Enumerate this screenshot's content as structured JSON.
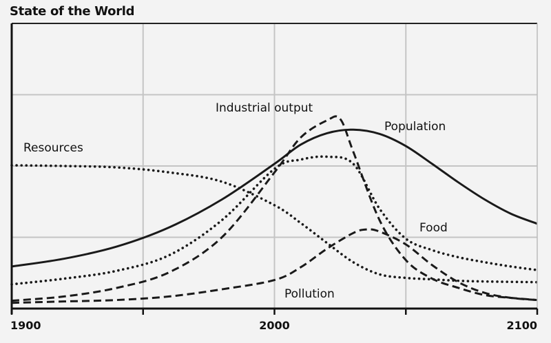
{
  "chart_data": {
    "type": "line",
    "title": "State of the World",
    "xlabel": "",
    "ylabel": "",
    "xlim": [
      1900,
      2100
    ],
    "ylim": [
      0,
      4
    ],
    "x_ticks": [
      "1900",
      "2000",
      "2100"
    ],
    "grid": true,
    "legend": "inline labels",
    "series": [
      {
        "name": "Population",
        "style": "solid",
        "x": [
          1900,
          1920,
          1940,
          1960,
          1980,
          2000,
          2010,
          2020,
          2030,
          2040,
          2050,
          2060,
          2070,
          2080,
          2090,
          2100
        ],
        "y": [
          0.59,
          0.7,
          0.87,
          1.14,
          1.53,
          2.03,
          2.3,
          2.46,
          2.51,
          2.45,
          2.28,
          2.03,
          1.77,
          1.53,
          1.33,
          1.19
        ]
      },
      {
        "name": "Industrial output",
        "style": "dashed",
        "x": [
          1900,
          1920,
          1940,
          1960,
          1980,
          2000,
          2010,
          2020,
          2025,
          2030,
          2040,
          2050,
          2060,
          2070,
          2080,
          2090,
          2100
        ],
        "y": [
          0.11,
          0.17,
          0.29,
          0.51,
          1.0,
          1.91,
          2.4,
          2.64,
          2.66,
          2.2,
          1.24,
          0.68,
          0.42,
          0.29,
          0.19,
          0.15,
          0.12
        ]
      },
      {
        "name": "Food",
        "style": "dotted",
        "x": [
          1900,
          1920,
          1940,
          1960,
          1980,
          2000,
          2010,
          2020,
          2030,
          2040,
          2050,
          2060,
          2070,
          2080,
          2090,
          2100
        ],
        "y": [
          0.34,
          0.42,
          0.53,
          0.75,
          1.24,
          1.96,
          2.09,
          2.13,
          2.03,
          1.4,
          0.98,
          0.82,
          0.72,
          0.65,
          0.59,
          0.54
        ]
      },
      {
        "name": "Resources",
        "style": "dotted",
        "x": [
          1900,
          1920,
          1940,
          1960,
          1980,
          2000,
          2010,
          2020,
          2030,
          2040,
          2050,
          2060,
          2070,
          2080,
          2100
        ],
        "y": [
          2.01,
          2.0,
          1.98,
          1.91,
          1.78,
          1.45,
          1.2,
          0.92,
          0.65,
          0.48,
          0.43,
          0.41,
          0.39,
          0.38,
          0.37
        ]
      },
      {
        "name": "Pollution",
        "style": "dashed",
        "x": [
          1900,
          1920,
          1940,
          1960,
          1980,
          2000,
          2010,
          2020,
          2030,
          2035,
          2040,
          2050,
          2060,
          2070,
          2080,
          2090,
          2100
        ],
        "y": [
          0.08,
          0.1,
          0.12,
          0.17,
          0.27,
          0.4,
          0.58,
          0.84,
          1.06,
          1.11,
          1.08,
          0.9,
          0.61,
          0.37,
          0.22,
          0.15,
          0.12
        ]
      }
    ]
  },
  "colors": {
    "background": "#f3f3f3",
    "line": "#1a1a1a",
    "grid": "#c4c4c4"
  }
}
